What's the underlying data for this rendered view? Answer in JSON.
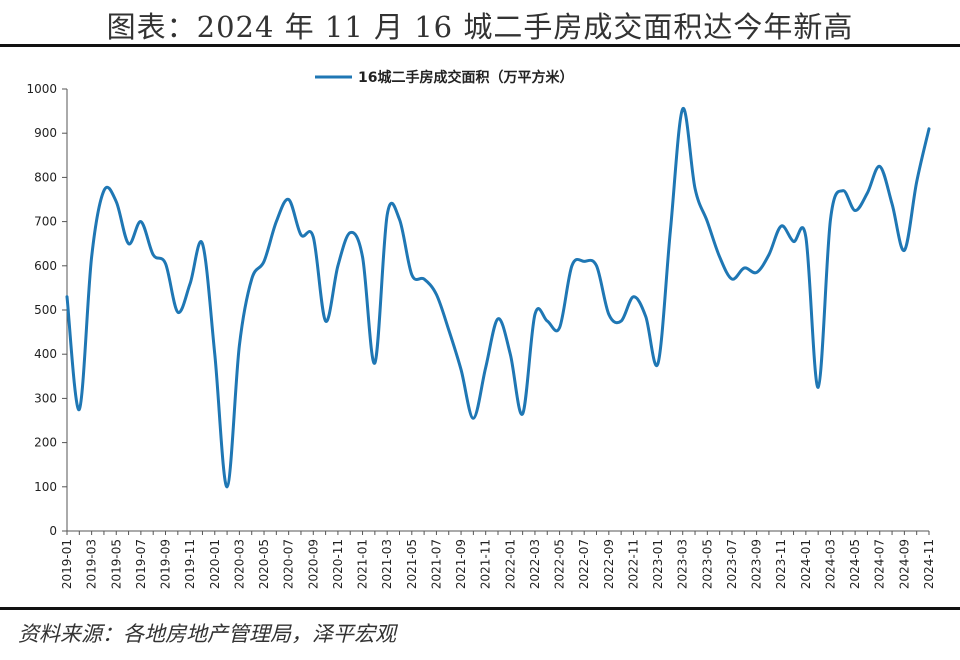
{
  "header": {
    "title": "图表：2024 年 11 月 16 城二手房成交面积达今年新高"
  },
  "footer": {
    "source": "资料来源：各地房地产管理局，泽平宏观"
  },
  "chart_data": {
    "type": "line",
    "title": "",
    "xlabel": "",
    "ylabel": "",
    "ylim": [
      0,
      1000
    ],
    "yticks": [
      0,
      100,
      200,
      300,
      400,
      500,
      600,
      700,
      800,
      900,
      1000
    ],
    "legend_position": "top-center",
    "grid": false,
    "x": [
      "2019-01",
      "2019-02",
      "2019-03",
      "2019-04",
      "2019-05",
      "2019-06",
      "2019-07",
      "2019-08",
      "2019-09",
      "2019-10",
      "2019-11",
      "2019-12",
      "2020-01",
      "2020-02",
      "2020-03",
      "2020-04",
      "2020-05",
      "2020-06",
      "2020-07",
      "2020-08",
      "2020-09",
      "2020-10",
      "2020-11",
      "2020-12",
      "2021-01",
      "2021-02",
      "2021-03",
      "2021-04",
      "2021-05",
      "2021-06",
      "2021-07",
      "2021-08",
      "2021-09",
      "2021-10",
      "2021-11",
      "2021-12",
      "2022-01",
      "2022-02",
      "2022-03",
      "2022-04",
      "2022-05",
      "2022-06",
      "2022-07",
      "2022-08",
      "2022-09",
      "2022-10",
      "2022-11",
      "2022-12",
      "2023-01",
      "2023-02",
      "2023-03",
      "2023-04",
      "2023-05",
      "2023-06",
      "2023-07",
      "2023-08",
      "2023-09",
      "2023-10",
      "2023-11",
      "2023-12",
      "2024-01",
      "2024-02",
      "2024-03",
      "2024-04",
      "2024-05",
      "2024-06",
      "2024-07",
      "2024-08",
      "2024-09",
      "2024-10",
      "2024-11"
    ],
    "xtick_labels": [
      "2019-01",
      "2019-03",
      "2019-05",
      "2019-07",
      "2019-09",
      "2019-11",
      "2020-01",
      "2020-03",
      "2020-05",
      "2020-07",
      "2020-09",
      "2020-11",
      "2021-01",
      "2021-03",
      "2021-05",
      "2021-07",
      "2021-09",
      "2021-11",
      "2022-01",
      "2022-03",
      "2022-05",
      "2022-07",
      "2022-09",
      "2022-11",
      "2023-01",
      "2023-03",
      "2023-05",
      "2023-07",
      "2023-09",
      "2023-11",
      "2024-01",
      "2024-03",
      "2024-05",
      "2024-07",
      "2024-09",
      "2024-11"
    ],
    "series": [
      {
        "name": "16城二手房成交面积（万平方米）",
        "color": "#1f77b4",
        "values": [
          530,
          275,
          620,
          770,
          745,
          650,
          700,
          625,
          605,
          495,
          560,
          650,
          400,
          100,
          420,
          570,
          610,
          700,
          750,
          670,
          665,
          475,
          600,
          675,
          620,
          380,
          715,
          705,
          580,
          570,
          535,
          455,
          365,
          255,
          370,
          480,
          400,
          265,
          490,
          475,
          460,
          600,
          610,
          600,
          490,
          475,
          530,
          485,
          380,
          680,
          955,
          775,
          700,
          620,
          570,
          595,
          585,
          625,
          690,
          655,
          665,
          325,
          705,
          770,
          725,
          765,
          825,
          740,
          635,
          790,
          910
        ]
      }
    ]
  }
}
